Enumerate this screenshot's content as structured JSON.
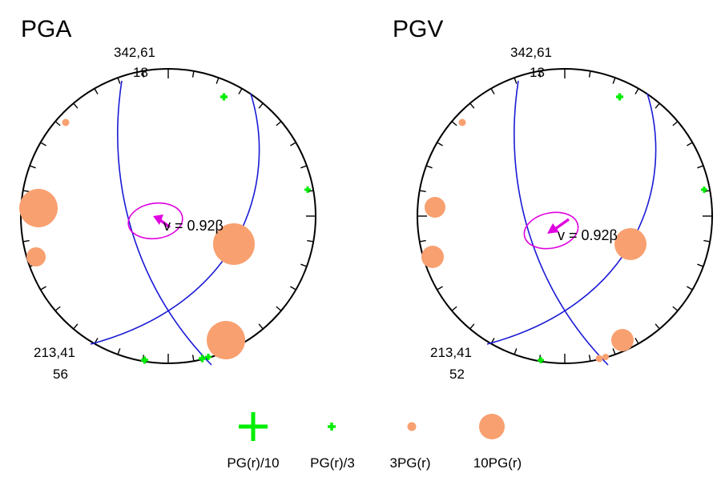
{
  "colors": {
    "circle": "#000000",
    "plane": "#1a1ad6",
    "ellipse": "#e000e0",
    "arrow": "#e000e0",
    "pos_marker": "#00ee00",
    "neg_marker": "#f8a070"
  },
  "panels": [
    {
      "title": "PGA",
      "top_label": "342,61",
      "top_num": "18",
      "bottom_label": "213,41",
      "bottom_num": "56",
      "velocity_label": "v = 0.92β"
    },
    {
      "title": "PGV",
      "top_label": "342,61",
      "top_num": "13",
      "bottom_label": "213,41",
      "bottom_num": "52",
      "velocity_label": "v = 0.92β"
    }
  ],
  "legend": {
    "items": [
      {
        "label": "PG(r)/10",
        "marker": "big-plus",
        "color": "#00ee00"
      },
      {
        "label": "PG(r)/3",
        "marker": "small-plus",
        "color": "#00ee00"
      },
      {
        "label": "3PG(r)",
        "marker": "small-dot",
        "color": "#f8a070"
      },
      {
        "label": "10PG(r)",
        "marker": "big-dot",
        "color": "#f8a070"
      }
    ]
  }
}
